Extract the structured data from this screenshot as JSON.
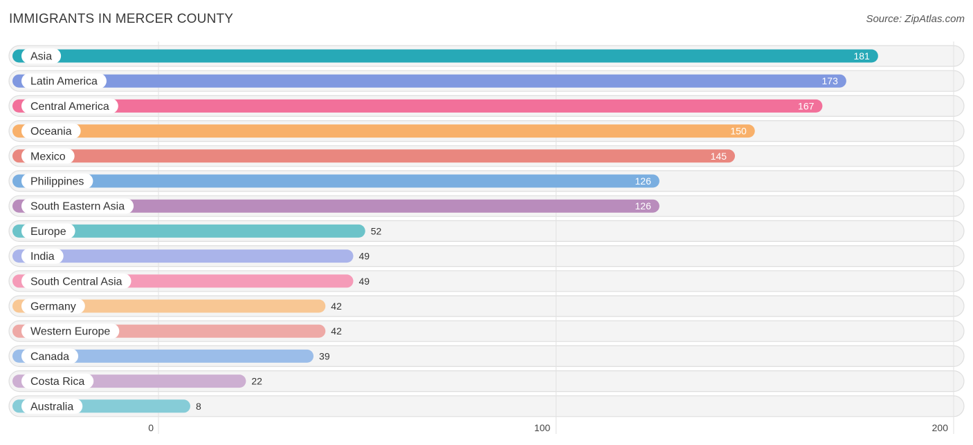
{
  "header": {
    "title": "IMMIGRANTS IN MERCER COUNTY",
    "source": "Source: ZipAtlas.com"
  },
  "chart_data": {
    "type": "bar",
    "orientation": "horizontal",
    "title": "IMMIGRANTS IN MERCER COUNTY",
    "xlabel": "",
    "ylabel": "",
    "xlim": [
      0,
      200
    ],
    "ticks": [
      0,
      100,
      200
    ],
    "grid": true,
    "categories": [
      "Asia",
      "Latin America",
      "Central America",
      "Oceania",
      "Mexico",
      "Philippines",
      "South Eastern Asia",
      "Europe",
      "India",
      "South Central Asia",
      "Germany",
      "Western Europe",
      "Canada",
      "Costa Rica",
      "Australia"
    ],
    "values": [
      181,
      173,
      167,
      150,
      145,
      126,
      126,
      52,
      49,
      49,
      42,
      42,
      39,
      22,
      8
    ],
    "colors": [
      "#27a9b7",
      "#8098e0",
      "#f2709a",
      "#f8b06a",
      "#e9877f",
      "#7aaee0",
      "#b98cbc",
      "#6cc3c9",
      "#aab4ea",
      "#f59bb8",
      "#f8c794",
      "#eea9a6",
      "#9bbde9",
      "#cdafd2",
      "#86ccd7"
    ]
  }
}
